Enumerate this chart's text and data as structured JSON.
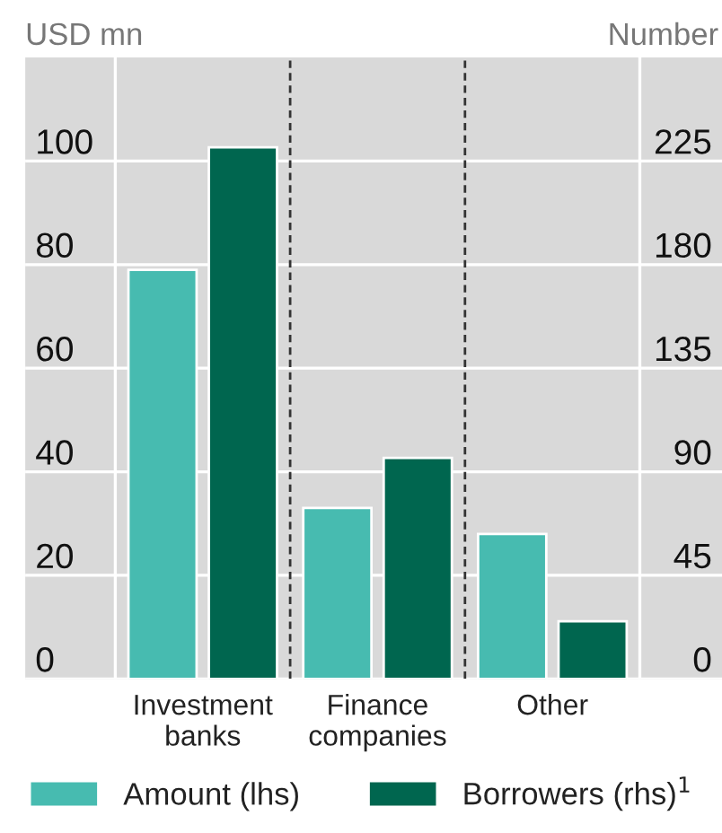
{
  "chart_data": {
    "type": "bar",
    "categories": [
      "Investment\nbanks",
      "Finance\ncompanies",
      "Other"
    ],
    "series": [
      {
        "name": "Amount (lhs)",
        "color": "#47bbb0",
        "values": [
          79,
          33,
          28
        ]
      },
      {
        "name": "Borrowers (rhs)$^{1}$",
        "color": "#00664f",
        "values": [
          231,
          96,
          25
        ],
        "axis": "y2"
      }
    ],
    "ylabel": "USD mn",
    "y2label": "Number",
    "ylim": [
      0,
      120
    ],
    "yticks": [
      0,
      20,
      40,
      60,
      80,
      100
    ],
    "y2lim": [
      0,
      270
    ],
    "y2ticks": [
      0,
      45,
      90,
      135,
      180,
      225
    ],
    "grid": "y",
    "legend": "bottom"
  }
}
